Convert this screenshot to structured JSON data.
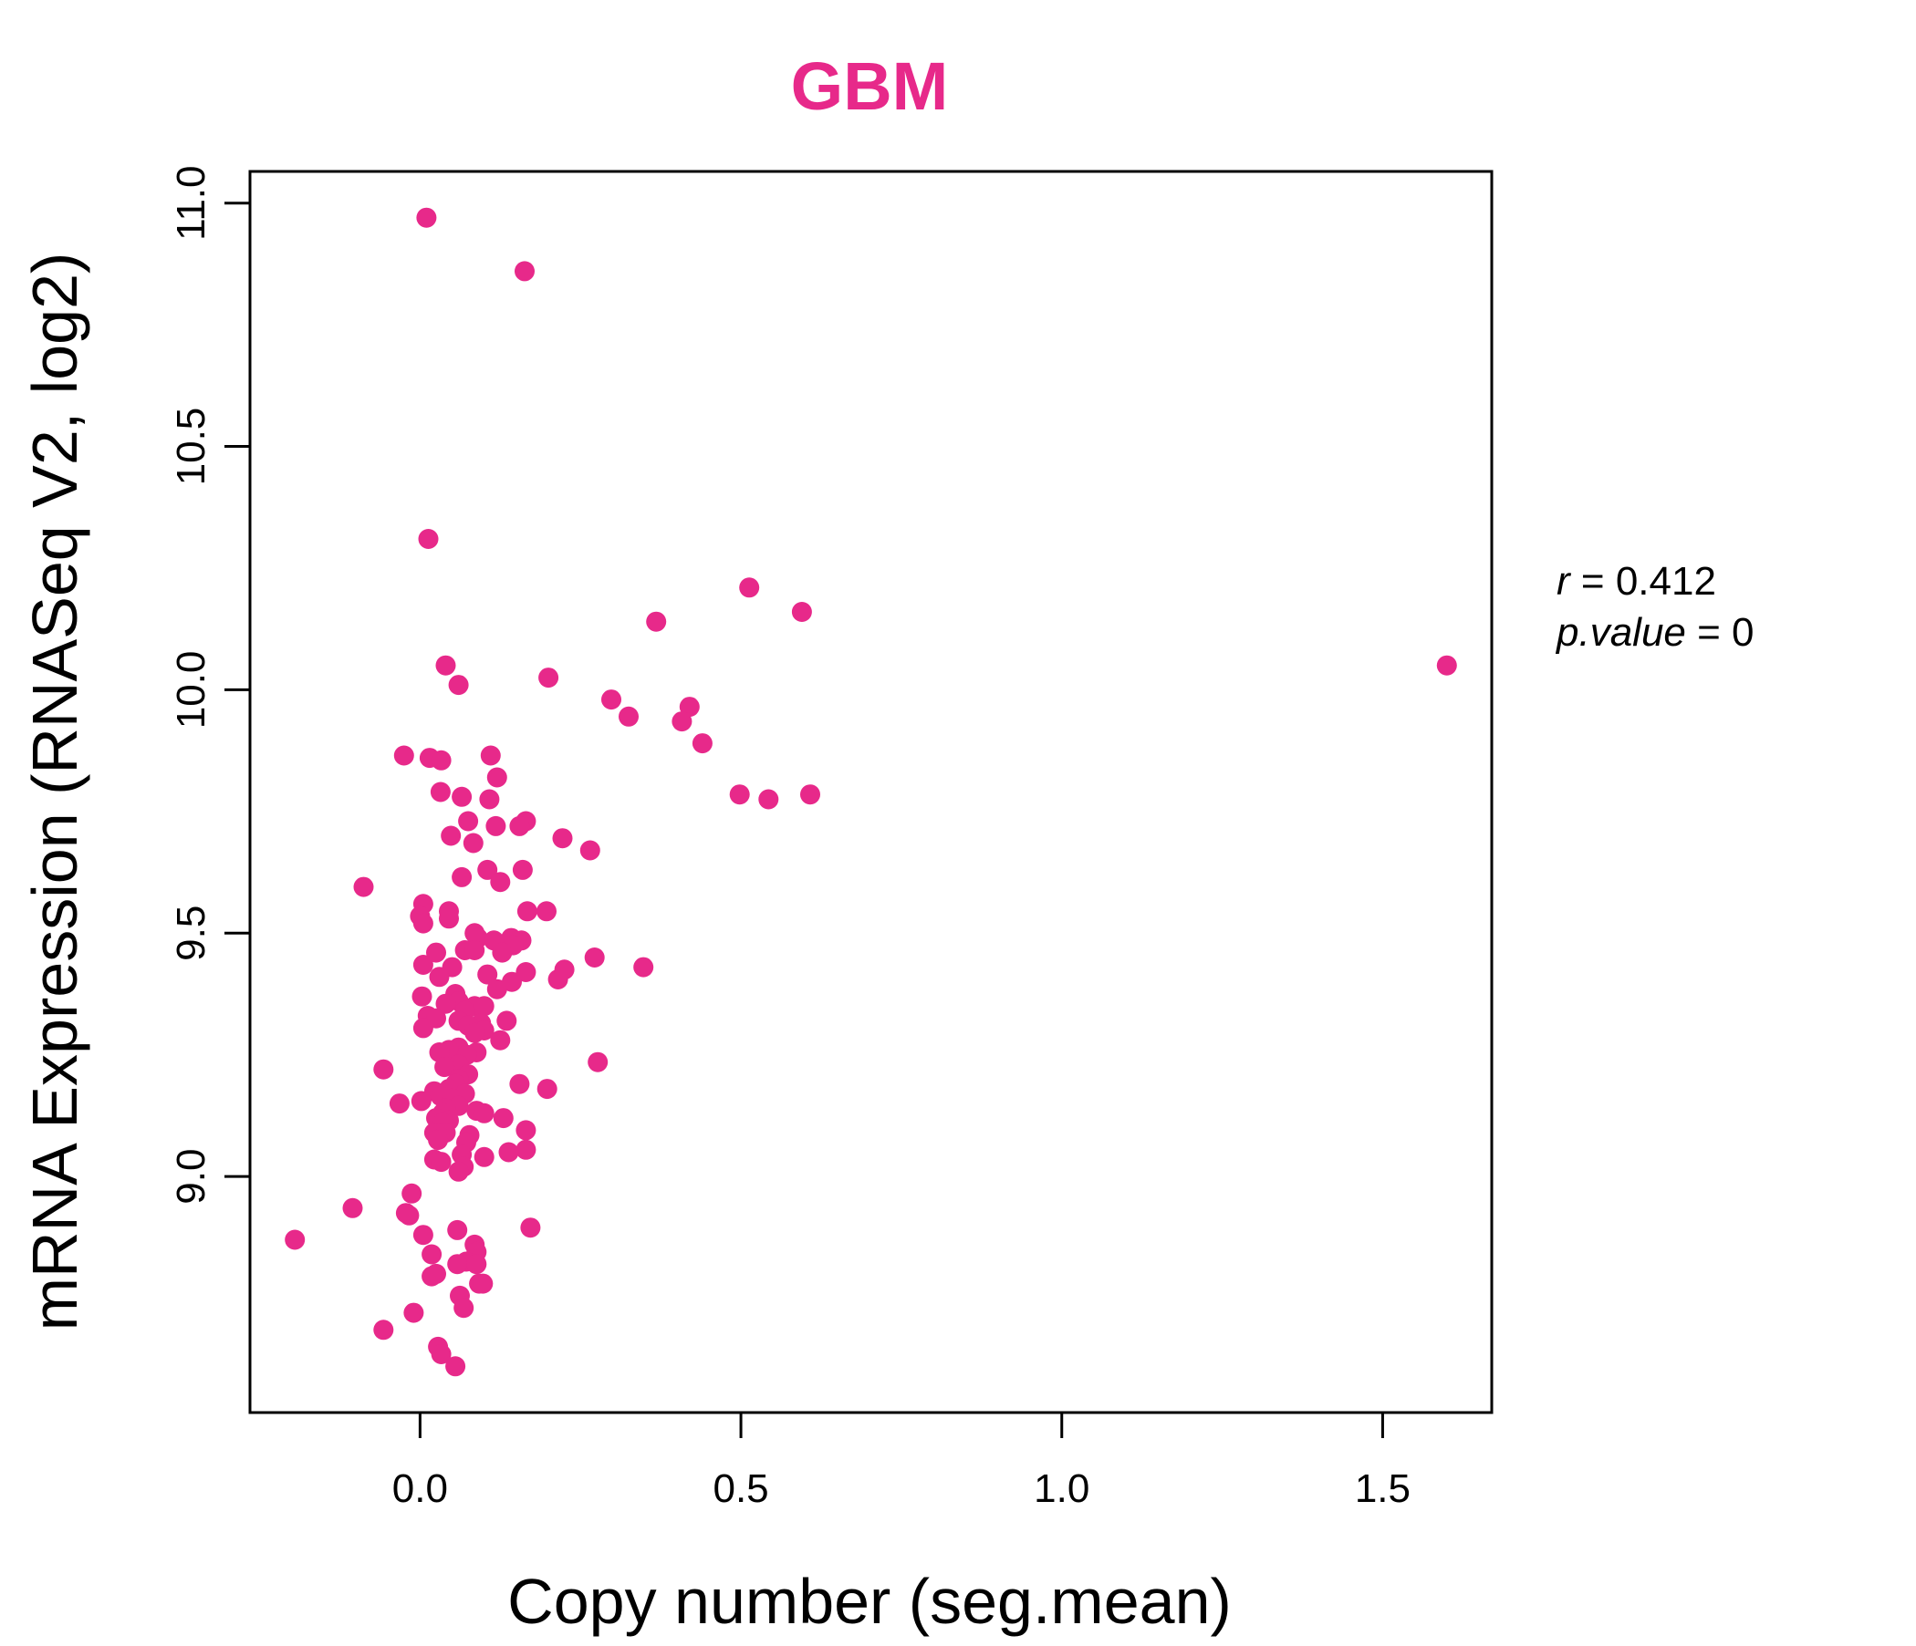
{
  "colors": {
    "accent": "#E7298A",
    "axis": "#000000",
    "background": "#ffffff"
  },
  "chart_data": {
    "type": "scatter",
    "title": "GBM",
    "xlabel": "Copy number (seg.mean)",
    "ylabel": "mRNA Expression (RNASeq V2, log2)",
    "xlim": [
      -0.265,
      1.67
    ],
    "ylim": [
      8.515,
      11.065
    ],
    "xticks": [
      "0.0",
      "0.5",
      "1.0",
      "1.5"
    ],
    "xtick_values": [
      0.0,
      0.5,
      1.0,
      1.5
    ],
    "yticks": [
      "9.0",
      "9.5",
      "10.0",
      "10.5",
      "11.0"
    ],
    "ytick_values": [
      9.0,
      9.5,
      10.0,
      10.5,
      11.0
    ],
    "grid": false,
    "legend": "none",
    "annotation": {
      "r_label": "r",
      "r_value": "0.412",
      "p_label": "p.value",
      "p_value": "0"
    },
    "points": [
      [
        0.01,
        10.97
      ],
      [
        0.163,
        10.86
      ],
      [
        0.013,
        10.31
      ],
      [
        0.513,
        10.21
      ],
      [
        0.595,
        10.16
      ],
      [
        0.368,
        10.14
      ],
      [
        0.04,
        10.05
      ],
      [
        1.6,
        10.05
      ],
      [
        0.2,
        10.025
      ],
      [
        0.06,
        10.01
      ],
      [
        0.298,
        9.98
      ],
      [
        0.42,
        9.965
      ],
      [
        0.325,
        9.945
      ],
      [
        0.408,
        9.935
      ],
      [
        0.44,
        9.89
      ],
      [
        -0.025,
        9.865
      ],
      [
        0.11,
        9.865
      ],
      [
        0.015,
        9.86
      ],
      [
        0.033,
        9.855
      ],
      [
        0.12,
        9.82
      ],
      [
        0.032,
        9.79
      ],
      [
        0.498,
        9.785
      ],
      [
        0.608,
        9.785
      ],
      [
        0.065,
        9.78
      ],
      [
        0.108,
        9.775
      ],
      [
        0.543,
        9.775
      ],
      [
        0.165,
        9.73
      ],
      [
        0.075,
        9.73
      ],
      [
        0.155,
        9.72
      ],
      [
        0.118,
        9.72
      ],
      [
        0.048,
        9.7
      ],
      [
        0.222,
        9.695
      ],
      [
        0.083,
        9.685
      ],
      [
        0.265,
        9.67
      ],
      [
        0.105,
        9.63
      ],
      [
        0.16,
        9.63
      ],
      [
        0.065,
        9.615
      ],
      [
        0.125,
        9.605
      ],
      [
        -0.088,
        9.595
      ],
      [
        0.005,
        9.56
      ],
      [
        0.045,
        9.545
      ],
      [
        0.167,
        9.545
      ],
      [
        0.197,
        9.545
      ],
      [
        0.0,
        9.535
      ],
      [
        0.045,
        9.53
      ],
      [
        0.005,
        9.52
      ],
      [
        0.085,
        9.5
      ],
      [
        0.09,
        9.49
      ],
      [
        0.115,
        9.485
      ],
      [
        0.142,
        9.49
      ],
      [
        0.158,
        9.485
      ],
      [
        0.145,
        9.475
      ],
      [
        0.07,
        9.465
      ],
      [
        0.085,
        9.465
      ],
      [
        0.025,
        9.46
      ],
      [
        0.128,
        9.46
      ],
      [
        0.272,
        9.45
      ],
      [
        0.005,
        9.435
      ],
      [
        0.05,
        9.43
      ],
      [
        0.348,
        9.43
      ],
      [
        0.225,
        9.425
      ],
      [
        0.165,
        9.42
      ],
      [
        0.105,
        9.415
      ],
      [
        0.03,
        9.41
      ],
      [
        0.215,
        9.405
      ],
      [
        0.143,
        9.4
      ],
      [
        0.12,
        9.385
      ],
      [
        0.055,
        9.375
      ],
      [
        0.003,
        9.37
      ],
      [
        0.06,
        9.36
      ],
      [
        0.04,
        9.355
      ],
      [
        0.085,
        9.35
      ],
      [
        0.1,
        9.35
      ],
      [
        0.07,
        9.34
      ],
      [
        0.012,
        9.33
      ],
      [
        0.025,
        9.325
      ],
      [
        0.06,
        9.32
      ],
      [
        0.135,
        9.32
      ],
      [
        0.095,
        9.315
      ],
      [
        0.075,
        9.31
      ],
      [
        0.005,
        9.305
      ],
      [
        0.1,
        9.3
      ],
      [
        0.085,
        9.295
      ],
      [
        0.125,
        9.28
      ],
      [
        0.06,
        9.265
      ],
      [
        0.045,
        9.26
      ],
      [
        0.03,
        9.255
      ],
      [
        0.088,
        9.255
      ],
      [
        0.073,
        9.25
      ],
      [
        0.277,
        9.235
      ],
      [
        0.06,
        9.23
      ],
      [
        0.038,
        9.225
      ],
      [
        -0.057,
        9.22
      ],
      [
        0.075,
        9.21
      ],
      [
        0.06,
        9.2
      ],
      [
        0.055,
        9.19
      ],
      [
        0.155,
        9.19
      ],
      [
        0.045,
        9.18
      ],
      [
        0.198,
        9.18
      ],
      [
        0.022,
        9.175
      ],
      [
        0.07,
        9.17
      ],
      [
        0.032,
        9.165
      ],
      [
        0.05,
        9.16
      ],
      [
        0.002,
        9.155
      ],
      [
        -0.032,
        9.15
      ],
      [
        0.06,
        9.145
      ],
      [
        0.04,
        9.14
      ],
      [
        0.088,
        9.135
      ],
      [
        0.035,
        9.13
      ],
      [
        0.1,
        9.13
      ],
      [
        0.025,
        9.12
      ],
      [
        0.045,
        9.115
      ],
      [
        0.13,
        9.12
      ],
      [
        0.035,
        9.11
      ],
      [
        0.165,
        9.095
      ],
      [
        0.022,
        9.09
      ],
      [
        0.04,
        9.09
      ],
      [
        0.077,
        9.085
      ],
      [
        0.028,
        9.075
      ],
      [
        0.072,
        9.07
      ],
      [
        0.165,
        9.055
      ],
      [
        0.138,
        9.05
      ],
      [
        0.065,
        9.045
      ],
      [
        0.1,
        9.04
      ],
      [
        0.022,
        9.035
      ],
      [
        0.033,
        9.03
      ],
      [
        0.068,
        9.02
      ],
      [
        0.06,
        9.01
      ],
      [
        -0.013,
        8.965
      ],
      [
        -0.105,
        8.935
      ],
      [
        -0.022,
        8.925
      ],
      [
        -0.017,
        8.92
      ],
      [
        0.172,
        8.895
      ],
      [
        0.058,
        8.89
      ],
      [
        0.005,
        8.88
      ],
      [
        0.085,
        8.86
      ],
      [
        0.088,
        8.845
      ],
      [
        0.018,
        8.84
      ],
      [
        0.072,
        8.825
      ],
      [
        0.058,
        8.82
      ],
      [
        0.088,
        8.82
      ],
      [
        0.025,
        8.8
      ],
      [
        0.018,
        8.795
      ],
      [
        0.092,
        8.78
      ],
      [
        0.098,
        8.78
      ],
      [
        0.062,
        8.755
      ],
      [
        0.068,
        8.73
      ],
      [
        -0.01,
        8.72
      ],
      [
        -0.057,
        8.685
      ],
      [
        0.028,
        8.65
      ],
      [
        0.033,
        8.635
      ],
      [
        0.055,
        8.61
      ],
      [
        -0.195,
        8.87
      ]
    ]
  }
}
